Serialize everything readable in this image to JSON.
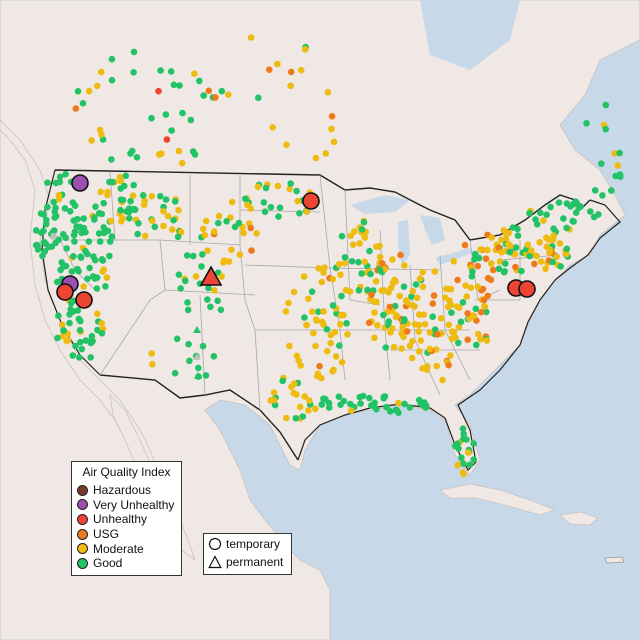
{
  "legend": {
    "title": "Air Quality Index",
    "categories": [
      {
        "label": "Hazardous",
        "color": "#7a3a2a"
      },
      {
        "label": "Very Unhealthy",
        "color": "#9b4fb0"
      },
      {
        "label": "Unhealthy",
        "color": "#ee4433"
      },
      {
        "label": "USG",
        "color": "#ee7a1c"
      },
      {
        "label": "Moderate",
        "color": "#eebb11"
      },
      {
        "label": "Good",
        "color": "#22c266"
      }
    ],
    "types": [
      {
        "label": "temporary",
        "shape": "circle"
      },
      {
        "label": "permanent",
        "shape": "triangle"
      }
    ]
  },
  "colors": {
    "ocean": "#c7d8e8",
    "land": "#efe8e4",
    "border": "#222222",
    "state": "#a8a8a8",
    "gray_station": "#c0c0c0"
  }
}
